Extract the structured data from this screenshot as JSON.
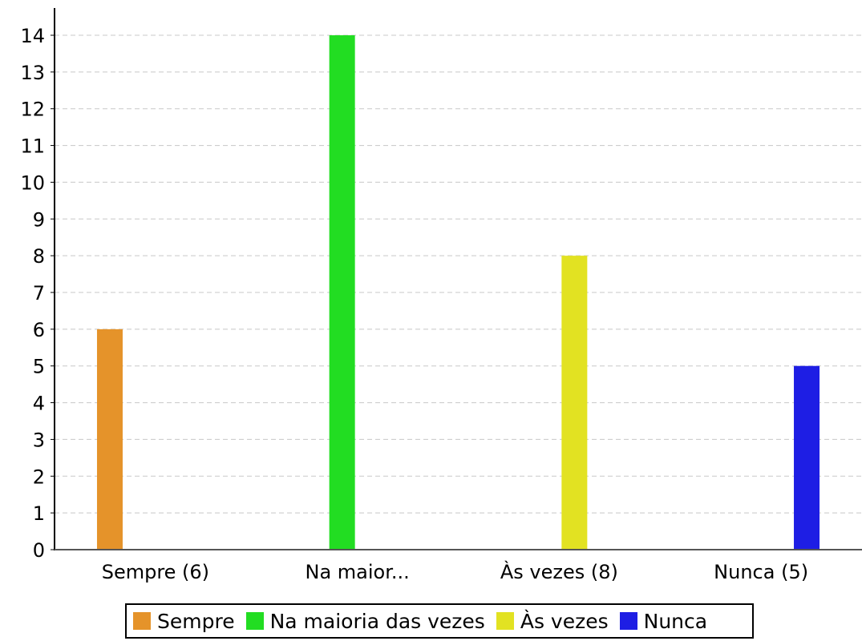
{
  "chart_data": {
    "type": "bar",
    "title": "",
    "xlabel": "",
    "ylabel": "",
    "categories": [
      "Sempre (6)",
      "Na maior...",
      "Às vezes (8)",
      "Nunca (5)"
    ],
    "yticks": [
      "0",
      "1",
      "2",
      "3",
      "4",
      "5",
      "6",
      "7",
      "8",
      "9",
      "10",
      "11",
      "12",
      "13",
      "14"
    ],
    "ylim": [
      0,
      14
    ],
    "grid": true,
    "legend_position": "bottom",
    "series": [
      {
        "name": "Sempre",
        "color": "#e5932a",
        "values": [
          6,
          0,
          0,
          0
        ]
      },
      {
        "name": "Na maioria das vezes",
        "color": "#22dd22",
        "values": [
          0,
          14,
          0,
          0
        ]
      },
      {
        "name": "Às vezes",
        "color": "#e2e222",
        "values": [
          0,
          0,
          8,
          0
        ]
      },
      {
        "name": "Nunca",
        "color": "#1e1ee4",
        "values": [
          0,
          0,
          0,
          5
        ]
      }
    ]
  }
}
